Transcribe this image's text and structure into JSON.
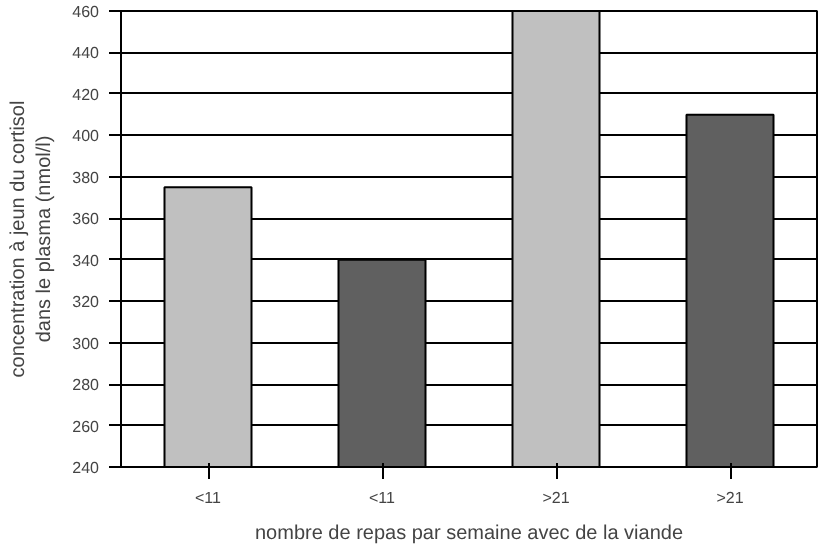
{
  "chart_data": {
    "type": "bar",
    "xlabel": "nombre de repas par semaine avec de la viande",
    "ylabel": "concentration à jeun du cortisol\ndans le plasma (nmol/l)",
    "categories": [
      "<11",
      "<11",
      ">21",
      ">21"
    ],
    "values": [
      375,
      340,
      460,
      410
    ],
    "colors": [
      "#c0c0c0",
      "#606060",
      "#c0c0c0",
      "#606060"
    ],
    "ylim": [
      240,
      460
    ],
    "yticks": [
      240,
      260,
      280,
      300,
      320,
      340,
      360,
      380,
      400,
      420,
      440,
      460
    ],
    "grid": "y"
  }
}
